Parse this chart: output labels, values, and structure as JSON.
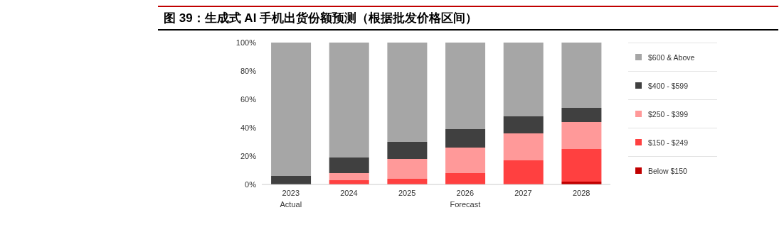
{
  "chart_data": {
    "type": "bar",
    "title": "图 39：生成式 AI 手机出货份额预测（根据批发价格区间）",
    "categories": [
      "2023",
      "2024",
      "2025",
      "2026",
      "2027",
      "2028"
    ],
    "stacked": true,
    "series": [
      {
        "name": "Below $150",
        "color": "#c00000",
        "values": [
          0,
          0,
          0,
          0,
          0,
          2
        ]
      },
      {
        "name": "$150 - $249",
        "color": "#ff4040",
        "values": [
          0,
          3,
          4,
          8,
          17,
          23
        ]
      },
      {
        "name": "$250 - $399",
        "color": "#ff9999",
        "values": [
          0,
          5,
          14,
          18,
          19,
          19
        ]
      },
      {
        "name": "$400 - $599",
        "color": "#404040",
        "values": [
          6,
          11,
          12,
          13,
          12,
          10
        ]
      },
      {
        "name": "$600 & Above",
        "color": "#a6a6a6",
        "values": [
          94,
          81,
          70,
          61,
          52,
          46
        ]
      }
    ],
    "ylim": [
      0,
      100
    ],
    "yticks": [
      {
        "value": 0,
        "label": "0%"
      },
      {
        "value": 20,
        "label": "20%"
      },
      {
        "value": 40,
        "label": "40%"
      },
      {
        "value": 60,
        "label": "60%"
      },
      {
        "value": 80,
        "label": "80%"
      },
      {
        "value": 100,
        "label": "100%"
      }
    ],
    "grid": false,
    "legend": "right",
    "annotations": [
      "Actual",
      "Forecast"
    ]
  }
}
